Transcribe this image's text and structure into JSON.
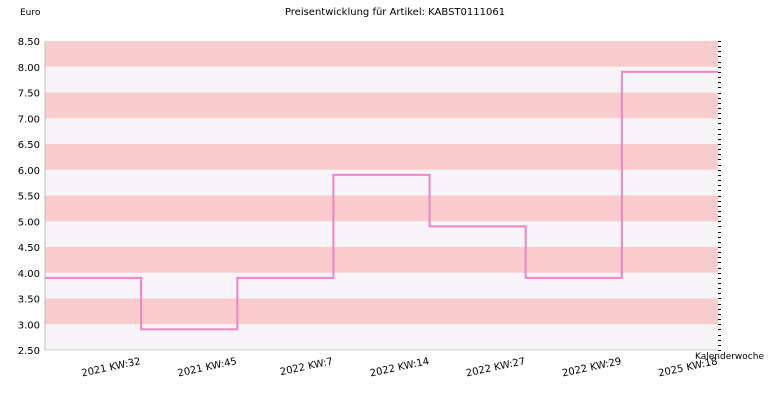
{
  "chart_data": {
    "type": "line",
    "step": true,
    "title": "Preisentwicklung für Artikel: KABST0111061",
    "ylabel": "Euro",
    "xlabel": "Kalenderwoche",
    "categories": [
      "2021 KW:32",
      "2021 KW:45",
      "2022 KW:7",
      "2022 KW:14",
      "2022 KW:27",
      "2022 KW:29",
      "2025 KW:18"
    ],
    "series": [
      {
        "values": [
          3.9,
          2.9,
          3.9,
          5.9,
          4.9,
          3.9,
          7.9
        ]
      }
    ],
    "ylim": [
      2.5,
      8.5
    ],
    "yticks": [
      "2.50",
      "3.00",
      "3.50",
      "4.00",
      "4.50",
      "5.00",
      "5.50",
      "6.00",
      "6.50",
      "7.00",
      "7.50",
      "8.00",
      "8.50"
    ],
    "band_colors": [
      "#f8cccc",
      "#f6f4f6"
    ],
    "line_color": "#f482c8",
    "grid": true
  }
}
